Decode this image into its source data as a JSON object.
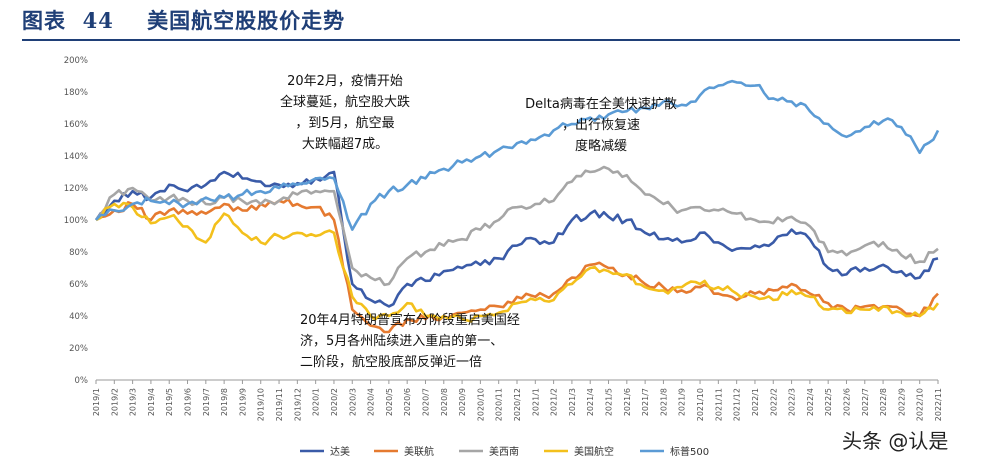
{
  "header": {
    "title": "图表  44    美国航空股股价走势"
  },
  "watermark": "头条 @认是",
  "chart_data": {
    "type": "line",
    "title": "美国航空股股价走势",
    "ylim": [
      0,
      200
    ],
    "yticks": [
      "0%",
      "20%",
      "40%",
      "60%",
      "80%",
      "100%",
      "120%",
      "140%",
      "160%",
      "180%",
      "200%"
    ],
    "categories": [
      "2019/1",
      "2019/2",
      "2019/3",
      "2019/4",
      "2019/5",
      "2019/6",
      "2019/7",
      "2019/8",
      "2019/9",
      "2019/10",
      "2019/11",
      "2019/12",
      "2020/1",
      "2020/2",
      "2020/3",
      "2020/4",
      "2020/5",
      "2020/6",
      "2020/7",
      "2020/8",
      "2020/9",
      "2020/10",
      "2020/11",
      "2020/12",
      "2021/1",
      "2021/2",
      "2021/3",
      "2021/4",
      "2021/5",
      "2021/6",
      "2021/7",
      "2021/8",
      "2021/9",
      "2021/10",
      "2021/11",
      "2021/12",
      "2022/1",
      "2022/2",
      "2022/3",
      "2022/4",
      "2022/5",
      "2022/6",
      "2022/7",
      "2022/8",
      "2022/9",
      "2022/10",
      "2022/11"
    ],
    "series": [
      {
        "name": "达美",
        "color": "#3a5ba8",
        "values": [
          100,
          112,
          118,
          114,
          122,
          118,
          122,
          130,
          126,
          124,
          122,
          123,
          126,
          130,
          60,
          50,
          46,
          60,
          62,
          68,
          70,
          72,
          76,
          84,
          88,
          86,
          100,
          104,
          102,
          100,
          92,
          88,
          86,
          92,
          86,
          82,
          84,
          86,
          94,
          88,
          70,
          66,
          70,
          72,
          68,
          64,
          76
        ]
      },
      {
        "name": "美联航",
        "color": "#e57a30",
        "values": [
          100,
          106,
          110,
          100,
          106,
          104,
          104,
          110,
          106,
          110,
          112,
          110,
          108,
          100,
          44,
          34,
          30,
          38,
          38,
          40,
          42,
          44,
          46,
          52,
          52,
          54,
          64,
          72,
          70,
          66,
          60,
          58,
          56,
          58,
          54,
          50,
          54,
          56,
          60,
          54,
          48,
          44,
          46,
          46,
          44,
          40,
          54
        ]
      },
      {
        "name": "美西南",
        "color": "#a6a6a6",
        "values": [
          100,
          116,
          120,
          112,
          114,
          112,
          110,
          114,
          112,
          110,
          112,
          116,
          118,
          118,
          70,
          64,
          60,
          76,
          80,
          84,
          88,
          94,
          100,
          108,
          110,
          112,
          124,
          130,
          132,
          128,
          116,
          110,
          106,
          108,
          106,
          104,
          100,
          98,
          102,
          96,
          80,
          78,
          84,
          86,
          78,
          74,
          82
        ]
      },
      {
        "name": "美国航空",
        "color": "#f3c01c",
        "values": [
          100,
          110,
          108,
          98,
          102,
          96,
          86,
          104,
          92,
          86,
          90,
          92,
          90,
          92,
          52,
          40,
          40,
          48,
          40,
          40,
          38,
          40,
          42,
          48,
          50,
          50,
          60,
          70,
          68,
          66,
          58,
          56,
          58,
          60,
          58,
          54,
          52,
          50,
          56,
          52,
          44,
          42,
          44,
          46,
          42,
          40,
          48
        ]
      },
      {
        "name": "标普500",
        "color": "#5b9bd5",
        "values": [
          100,
          106,
          110,
          112,
          110,
          110,
          114,
          114,
          116,
          118,
          120,
          122,
          126,
          126,
          94,
          110,
          118,
          122,
          126,
          132,
          136,
          140,
          144,
          148,
          150,
          156,
          160,
          164,
          166,
          168,
          170,
          174,
          172,
          178,
          184,
          186,
          184,
          176,
          174,
          168,
          160,
          152,
          158,
          162,
          158,
          142,
          156
        ]
      }
    ],
    "annotations": [
      "20年2月，疫情开始全球蔓延，航空股大跌，到5月，航空最大跌幅超7成。",
      "Delta病毒在全美快速扩散，出行恢复速度略减缓",
      "20年4月特朗普宣布分阶段重启美国经济，5月各州陆续进入重启的第一、二阶段，航空股底部反弹近一倍"
    ]
  }
}
